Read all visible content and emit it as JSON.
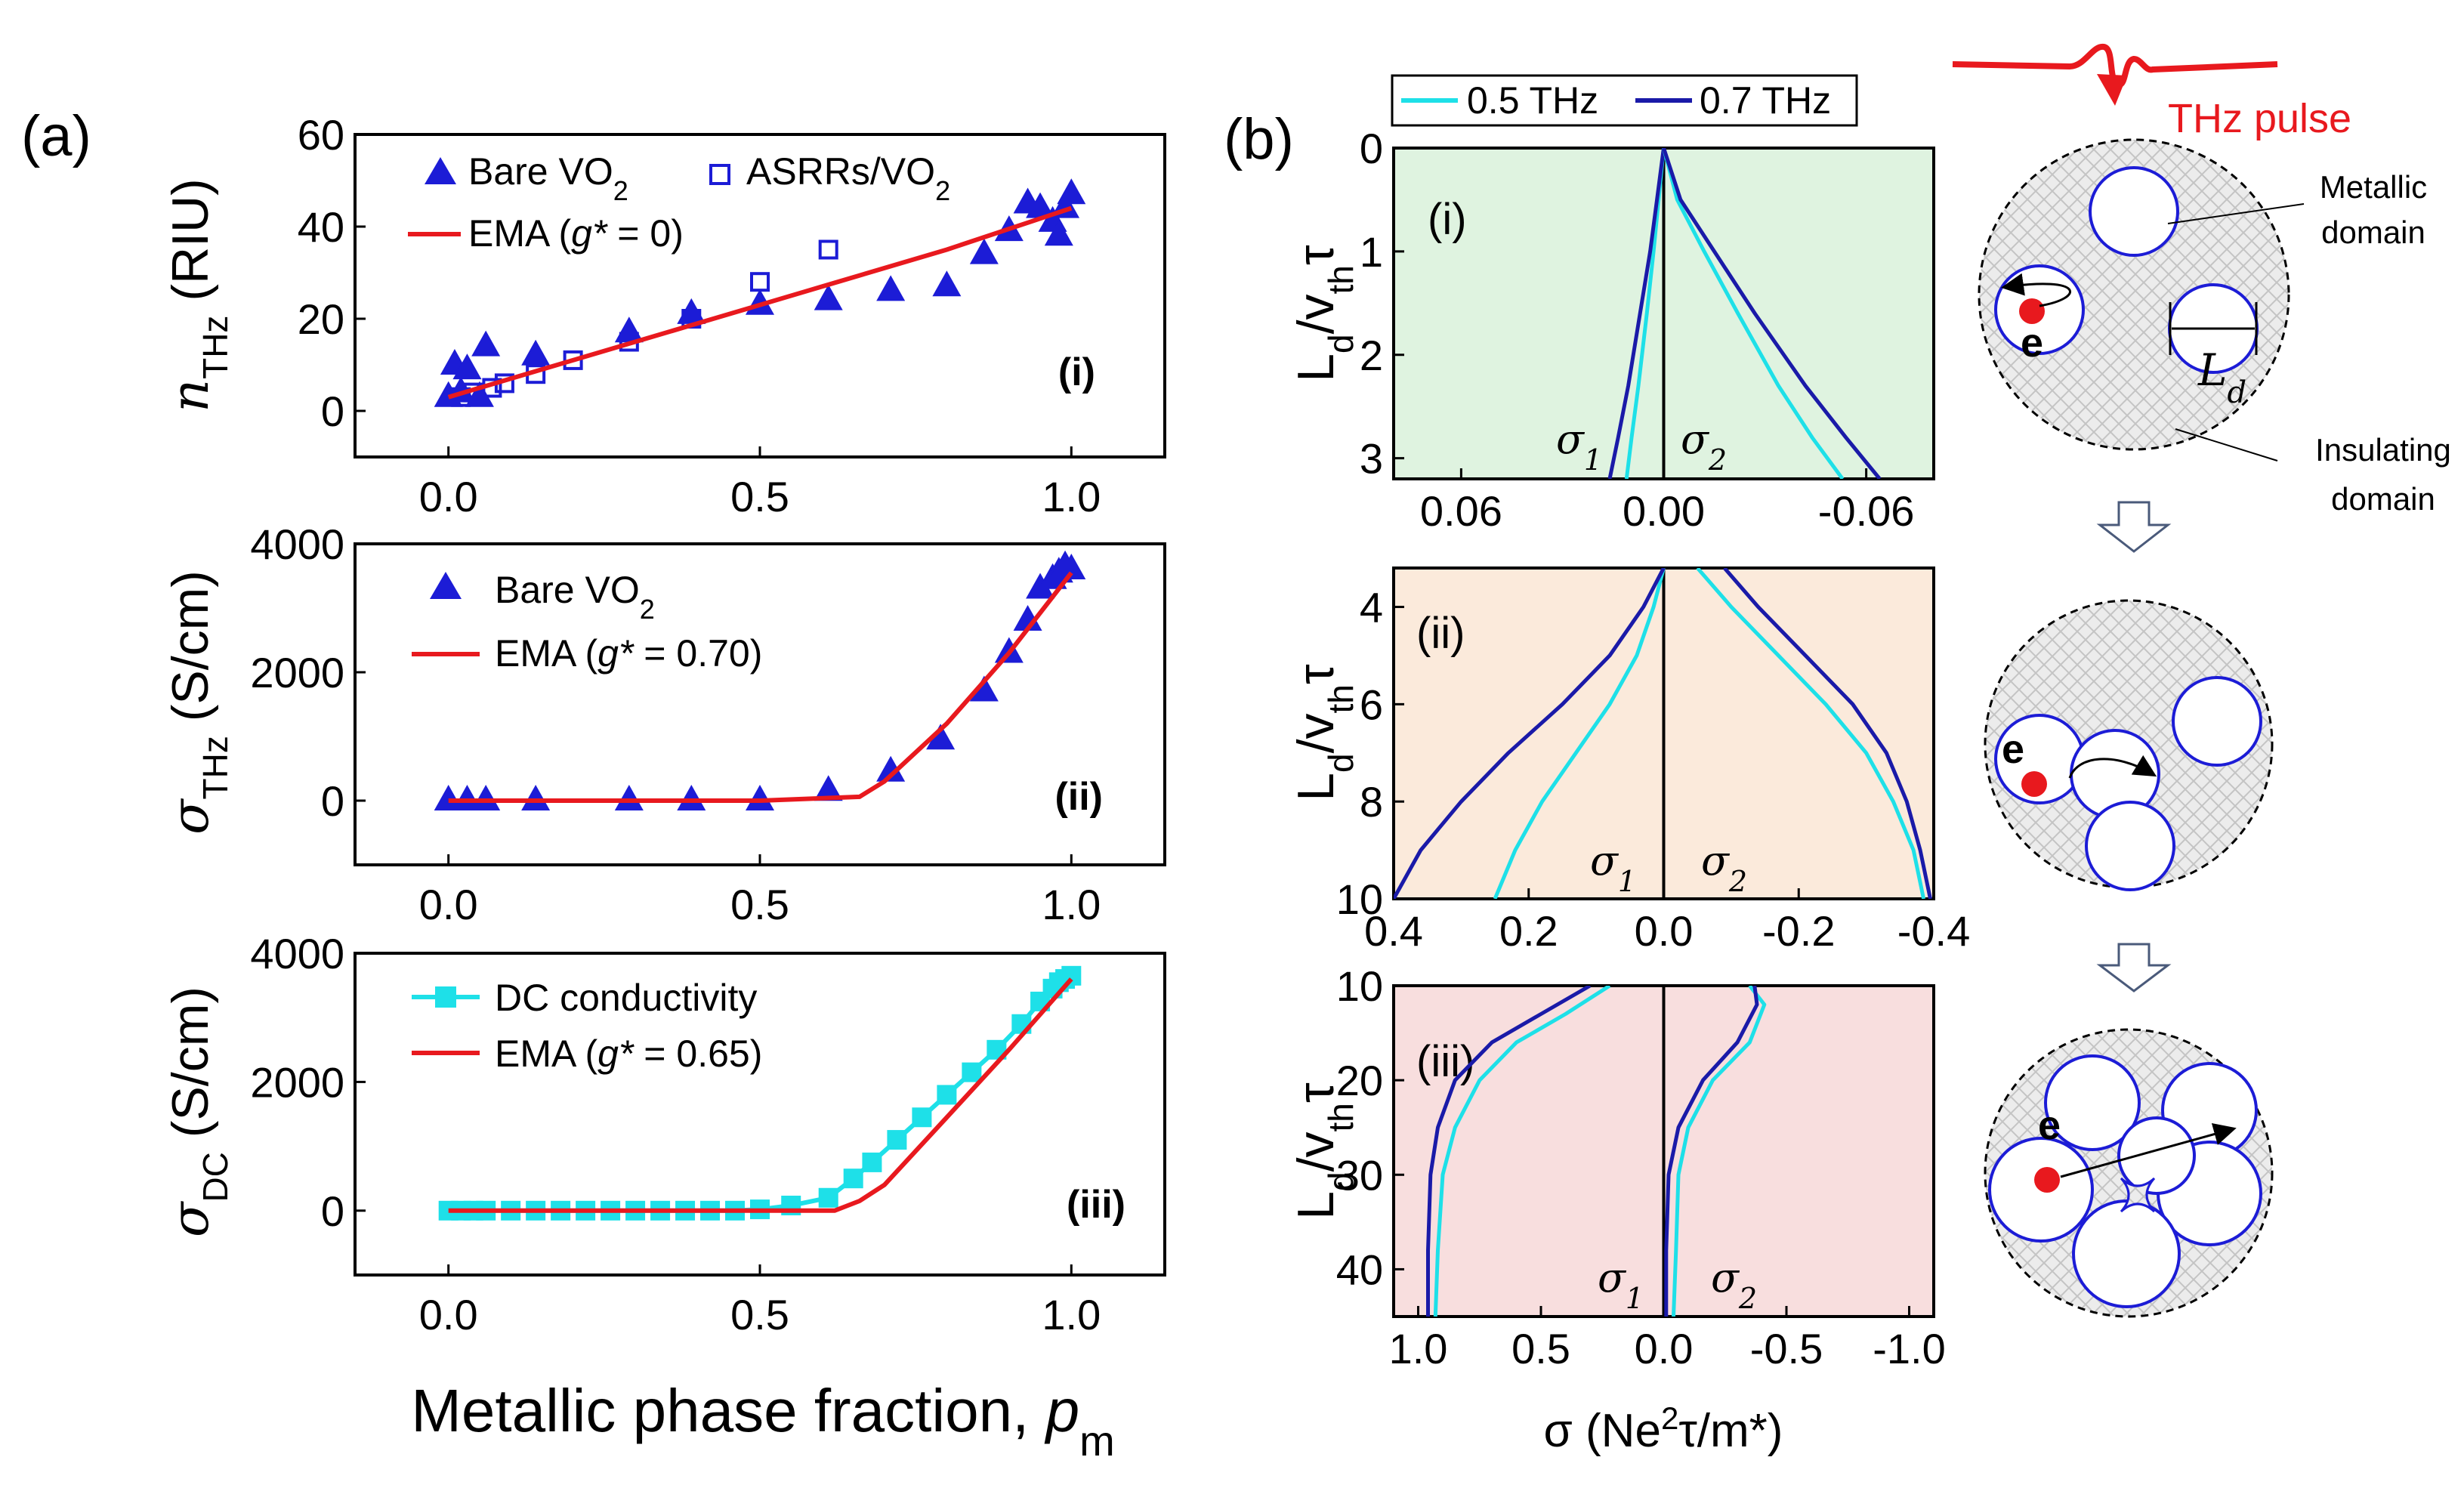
{
  "panel_labels": {
    "a": "(a)",
    "b": "(b)"
  },
  "colors": {
    "blue": "#1c1cd6",
    "red": "#e8191e",
    "cyan": "#1ee0e8",
    "navy": "#1a1aa8",
    "green_bg": "#dff3e0",
    "orange_bg": "#fbeadb",
    "pink_bg": "#f8dede"
  },
  "bottom_xlabel": "Metallic phase fraction, ",
  "bottom_xlabel_sym": "p",
  "bottom_xlabel_sub": "m",
  "chart_data": [
    {
      "id": "a-i",
      "type": "scatter",
      "ylabel_sym": "n",
      "ylabel_sub": "THz",
      "ylabel_unit": " (RIU)",
      "xlim": [
        -0.15,
        1.15
      ],
      "ylim": [
        -10,
        60
      ],
      "xticks": [
        "0.0",
        "0.5",
        "1.0"
      ],
      "yticks": [
        "0",
        "20",
        "40",
        "60"
      ],
      "panel_tag": "(i)",
      "legend": [
        {
          "label": "Bare VO",
          "sub": "2"
        },
        {
          "label": "ASRRs/VO",
          "sub": "2"
        },
        {
          "label": "EMA (",
          "gstar": "g*",
          "tail": " = 0)"
        }
      ],
      "series": [
        {
          "name": "Bare VO2",
          "marker": "triangle",
          "x": [
            0.0,
            0.01,
            0.02,
            0.03,
            0.05,
            0.06,
            0.14,
            0.29,
            0.39,
            0.5,
            0.61,
            0.71,
            0.8,
            0.86,
            0.9,
            0.93,
            0.95,
            0.97,
            0.98,
            0.99,
            1.0
          ],
          "y": [
            3,
            10,
            4,
            9,
            3,
            14,
            12,
            17,
            21,
            23,
            24,
            26,
            27,
            34,
            39,
            45,
            44,
            41,
            38,
            44,
            47
          ]
        },
        {
          "name": "ASRRs/VO2",
          "marker": "square",
          "x": [
            0.02,
            0.04,
            0.07,
            0.09,
            0.14,
            0.2,
            0.29,
            0.39,
            0.5,
            0.61
          ],
          "y": [
            3,
            4,
            5,
            6,
            8,
            11,
            15,
            20,
            28,
            35
          ]
        },
        {
          "name": "EMA (g* = 0)",
          "marker": "line",
          "x": [
            0.0,
            0.2,
            0.4,
            0.6,
            0.8,
            1.0
          ],
          "y": [
            3,
            11,
            19,
            27,
            35,
            44
          ]
        }
      ]
    },
    {
      "id": "a-ii",
      "type": "scatter",
      "ylabel_sym": "σ",
      "ylabel_sub": "THz",
      "ylabel_unit": " (S/cm)",
      "xlim": [
        -0.15,
        1.15
      ],
      "ylim": [
        -1000,
        4000
      ],
      "xticks": [
        "0.0",
        "0.5",
        "1.0"
      ],
      "yticks": [
        "0",
        "2000",
        "4000"
      ],
      "panel_tag": "(ii)",
      "legend": [
        {
          "label": "Bare VO",
          "sub": "2"
        },
        {
          "label": "EMA (",
          "gstar": "g*",
          "tail": " = 0.70)"
        }
      ],
      "series": [
        {
          "name": "Bare VO2",
          "marker": "triangle",
          "x": [
            0.0,
            0.03,
            0.06,
            0.14,
            0.29,
            0.39,
            0.5,
            0.61,
            0.71,
            0.79,
            0.86,
            0.9,
            0.93,
            0.95,
            0.97,
            0.98,
            0.99,
            1.0
          ],
          "y": [
            0,
            0,
            0,
            0,
            0,
            0,
            0,
            150,
            450,
            950,
            1700,
            2300,
            2800,
            3300,
            3450,
            3550,
            3650,
            3600
          ]
        },
        {
          "name": "EMA (g* = 0.70)",
          "marker": "line",
          "x": [
            0.0,
            0.5,
            0.66,
            0.7,
            0.8,
            0.9,
            1.0
          ],
          "y": [
            0,
            0,
            60,
            300,
            1200,
            2300,
            3550
          ]
        }
      ]
    },
    {
      "id": "a-iii",
      "type": "line",
      "ylabel_sym": "σ",
      "ylabel_sub": "DC",
      "ylabel_unit": " (S/cm)",
      "xlim": [
        -0.15,
        1.15
      ],
      "ylim": [
        -1000,
        4000
      ],
      "xticks": [
        "0.0",
        "0.5",
        "1.0"
      ],
      "yticks": [
        "0",
        "2000",
        "4000"
      ],
      "panel_tag": "(iii)",
      "legend": [
        {
          "label": "DC conductivity"
        },
        {
          "label": "EMA (",
          "gstar": "g*",
          "tail": " = 0.65)"
        }
      ],
      "series": [
        {
          "name": "DC conductivity",
          "marker": "square-line",
          "x": [
            0.0,
            0.02,
            0.04,
            0.06,
            0.1,
            0.14,
            0.18,
            0.22,
            0.26,
            0.3,
            0.34,
            0.38,
            0.42,
            0.46,
            0.5,
            0.55,
            0.61,
            0.65,
            0.68,
            0.72,
            0.76,
            0.8,
            0.84,
            0.88,
            0.92,
            0.95,
            0.97,
            0.98,
            0.99,
            1.0
          ],
          "y": [
            0,
            0,
            0,
            0,
            0,
            0,
            0,
            0,
            0,
            0,
            0,
            0,
            0,
            0,
            20,
            80,
            200,
            500,
            750,
            1100,
            1450,
            1800,
            2150,
            2500,
            2900,
            3250,
            3450,
            3550,
            3600,
            3650
          ]
        },
        {
          "name": "EMA (g* = 0.65)",
          "marker": "line",
          "x": [
            0.0,
            0.62,
            0.66,
            0.7,
            0.8,
            0.9,
            1.0
          ],
          "y": [
            0,
            0,
            150,
            400,
            1450,
            2500,
            3600
          ]
        }
      ]
    },
    {
      "id": "b-i",
      "type": "line",
      "ylabel": "L",
      "ylabel_sub": "d",
      "ylabel_mid": "/v",
      "ylabel_sub2": "th",
      "ylabel_tail": "τ",
      "xlim": [
        0.08,
        -0.08
      ],
      "ylim": [
        3.2,
        0
      ],
      "xticks": [
        "0.06",
        "0.00",
        "-0.06"
      ],
      "xtick_vals": [
        0.06,
        0.0,
        -0.06
      ],
      "yticks": [
        "0",
        "1",
        "2",
        "3"
      ],
      "ytick_vals": [
        0,
        1,
        2,
        3
      ],
      "panel_tag": "(i)",
      "legend": [
        {
          "label": "0.5 THz"
        },
        {
          "label": "0.7 THz"
        }
      ],
      "sigma_labels": [
        "σ",
        "1",
        "σ",
        "2"
      ],
      "series": [
        {
          "name": "0.5 THz σ1",
          "x": [
            0.0,
            0.0015,
            0.003,
            0.005,
            0.0075,
            0.0095,
            0.011
          ],
          "y": [
            0,
            0.5,
            1.0,
            1.6,
            2.3,
            2.8,
            3.2
          ]
        },
        {
          "name": "0.7 THz σ1",
          "x": [
            0.0,
            0.002,
            0.004,
            0.007,
            0.0105,
            0.0135,
            0.016
          ],
          "y": [
            0,
            0.5,
            1.0,
            1.6,
            2.3,
            2.8,
            3.2
          ]
        },
        {
          "name": "0.5 THz σ2",
          "x": [
            0.0,
            -0.004,
            -0.012,
            -0.022,
            -0.034,
            -0.044,
            -0.053
          ],
          "y": [
            0,
            0.5,
            1.0,
            1.6,
            2.3,
            2.8,
            3.2
          ]
        },
        {
          "name": "0.7 THz σ2",
          "x": [
            0.0,
            -0.005,
            -0.015,
            -0.027,
            -0.042,
            -0.054,
            -0.064
          ],
          "y": [
            0,
            0.5,
            1.0,
            1.6,
            2.3,
            2.8,
            3.2
          ]
        }
      ]
    },
    {
      "id": "b-ii",
      "type": "line",
      "ylabel": "L",
      "ylabel_sub": "d",
      "ylabel_mid": "/v",
      "ylabel_sub2": "th",
      "ylabel_tail": "τ",
      "xlim": [
        0.4,
        -0.4
      ],
      "ylim": [
        10,
        3.2
      ],
      "xticks": [
        "0.4",
        "0.2",
        "0.0",
        "-0.2",
        "-0.4"
      ],
      "xtick_vals": [
        0.4,
        0.2,
        0.0,
        -0.2,
        -0.4
      ],
      "yticks": [
        "4",
        "6",
        "8",
        "10"
      ],
      "ytick_vals": [
        4,
        6,
        8,
        10
      ],
      "panel_tag": "(ii)",
      "sigma_labels": [
        "σ",
        "1",
        "σ",
        "2"
      ],
      "series": [
        {
          "name": "0.5 THz σ1",
          "x": [
            0.0,
            0.015,
            0.04,
            0.08,
            0.13,
            0.18,
            0.22,
            0.25
          ],
          "y": [
            3.2,
            4,
            5,
            6,
            7,
            8,
            9,
            10
          ]
        },
        {
          "name": "0.7 THz σ1",
          "x": [
            0.0,
            0.03,
            0.08,
            0.15,
            0.23,
            0.3,
            0.36,
            0.4
          ],
          "y": [
            3.2,
            4,
            5,
            6,
            7,
            8,
            9,
            10
          ]
        },
        {
          "name": "0.5 THz σ2",
          "x": [
            -0.05,
            -0.1,
            -0.17,
            -0.24,
            -0.3,
            -0.34,
            -0.37,
            -0.385
          ],
          "y": [
            3.2,
            4,
            5,
            6,
            7,
            8,
            9,
            10
          ]
        },
        {
          "name": "0.7 THz σ2",
          "x": [
            -0.09,
            -0.14,
            -0.21,
            -0.28,
            -0.33,
            -0.36,
            -0.38,
            -0.395
          ],
          "y": [
            3.2,
            4,
            5,
            6,
            7,
            8,
            9,
            10
          ]
        }
      ]
    },
    {
      "id": "b-iii",
      "type": "line",
      "ylabel": "L",
      "ylabel_sub": "d",
      "ylabel_mid": "/v",
      "ylabel_sub2": "th",
      "ylabel_tail": "τ",
      "xlim": [
        1.1,
        -1.1
      ],
      "ylim": [
        45,
        10
      ],
      "xticks": [
        "1.0",
        "0.5",
        "0.0",
        "-0.5",
        "-1.0"
      ],
      "xtick_vals": [
        1.0,
        0.5,
        0.0,
        -0.5,
        -1.0
      ],
      "yticks": [
        "10",
        "20",
        "30",
        "40"
      ],
      "ytick_vals": [
        10,
        20,
        30,
        40
      ],
      "panel_tag": "(iii)",
      "sigma_labels": [
        "σ",
        "1",
        "σ",
        "2"
      ],
      "xlabel": "σ (Ne",
      "xlabel_sup": "2",
      "xlabel_tail": "τ/m*)",
      "series": [
        {
          "name": "0.5 THz σ1",
          "x": [
            0.22,
            0.4,
            0.6,
            0.75,
            0.85,
            0.9,
            0.92,
            0.93
          ],
          "y": [
            10,
            13,
            16,
            20,
            25,
            30,
            38,
            45
          ]
        },
        {
          "name": "0.7 THz σ1",
          "x": [
            0.3,
            0.5,
            0.7,
            0.85,
            0.92,
            0.95,
            0.96,
            0.96
          ],
          "y": [
            10,
            13,
            16,
            20,
            25,
            30,
            38,
            45
          ]
        },
        {
          "name": "0.5 THz σ2",
          "x": [
            -0.35,
            -0.41,
            -0.35,
            -0.2,
            -0.1,
            -0.06,
            -0.05,
            -0.04
          ],
          "y": [
            10,
            12,
            16,
            20,
            25,
            30,
            38,
            45
          ]
        },
        {
          "name": "0.7 THz σ2",
          "x": [
            -0.37,
            -0.38,
            -0.3,
            -0.16,
            -0.06,
            -0.02,
            -0.01,
            -0.01
          ],
          "y": [
            10,
            12,
            16,
            20,
            25,
            30,
            38,
            45
          ]
        }
      ]
    }
  ],
  "schematic": {
    "pulse_label": "THz pulse",
    "metallic_label": [
      "Metallic",
      "domain"
    ],
    "insulating_label": [
      "Insulating",
      "domain"
    ],
    "electron_label": "e",
    "size_label": "L",
    "size_sub": "d"
  }
}
